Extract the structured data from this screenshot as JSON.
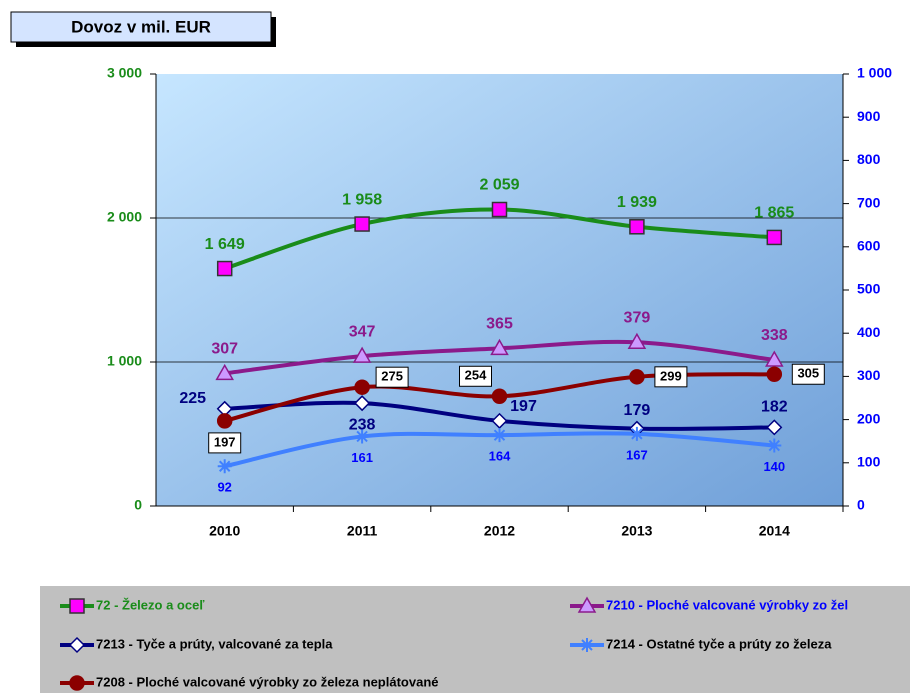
{
  "chart_data": {
    "type": "line",
    "title": "Dovoz v mil. EUR",
    "categories": [
      "2010",
      "2011",
      "2012",
      "2013",
      "2014"
    ],
    "ylim": [
      0,
      3000
    ],
    "yticks": [
      {
        "value": 0,
        "label": "0"
      },
      {
        "value": 1000,
        "label": "1 000"
      },
      {
        "value": 2000,
        "label": "2 000"
      },
      {
        "value": 3000,
        "label": "3 000"
      }
    ],
    "y2lim": [
      0,
      1000
    ],
    "y2ticks": [
      0,
      100,
      200,
      300,
      400,
      500,
      600,
      700,
      800,
      900,
      {
        "value": 1000,
        "label": "1 000"
      }
    ],
    "grid": true,
    "legend": "bottom",
    "series": [
      {
        "name": "72 - Železo a oceľ",
        "color": "#1a8c1a",
        "marker": "square",
        "marker_color": "#ff00ff",
        "values": [
          1649,
          1958,
          2059,
          1939,
          1865
        ],
        "value_labels": [
          "1 649",
          "1 958",
          "2 059",
          "1 939",
          "1 865"
        ]
      },
      {
        "name": "7210 - Ploché valcované výrobky zo žel",
        "color": "#8b1a8b",
        "marker": "triangle",
        "marker_color": "#cc99ff",
        "axis": "y2",
        "values": [
          307,
          347,
          365,
          379,
          338
        ]
      },
      {
        "name": "7213 - Tyče a prúty, valcované za tepla",
        "color": "#000080",
        "marker": "diamond",
        "marker_color": "#ffffff",
        "axis": "y2",
        "values": [
          225,
          238,
          197,
          179,
          182
        ]
      },
      {
        "name": "7214 - Ostatné tyče a prúty zo železa",
        "color": "#4080ff",
        "marker": "star",
        "marker_color": "#4080ff",
        "axis": "y2",
        "values": [
          92,
          161,
          164,
          167,
          140
        ]
      },
      {
        "name": "7208 - Ploché valcované výrobky zo železa neplátované",
        "color": "#8b0000",
        "marker": "circle",
        "marker_color": "#8b0000",
        "axis": "y2",
        "values": [
          197,
          275,
          254,
          299,
          305
        ]
      }
    ]
  }
}
